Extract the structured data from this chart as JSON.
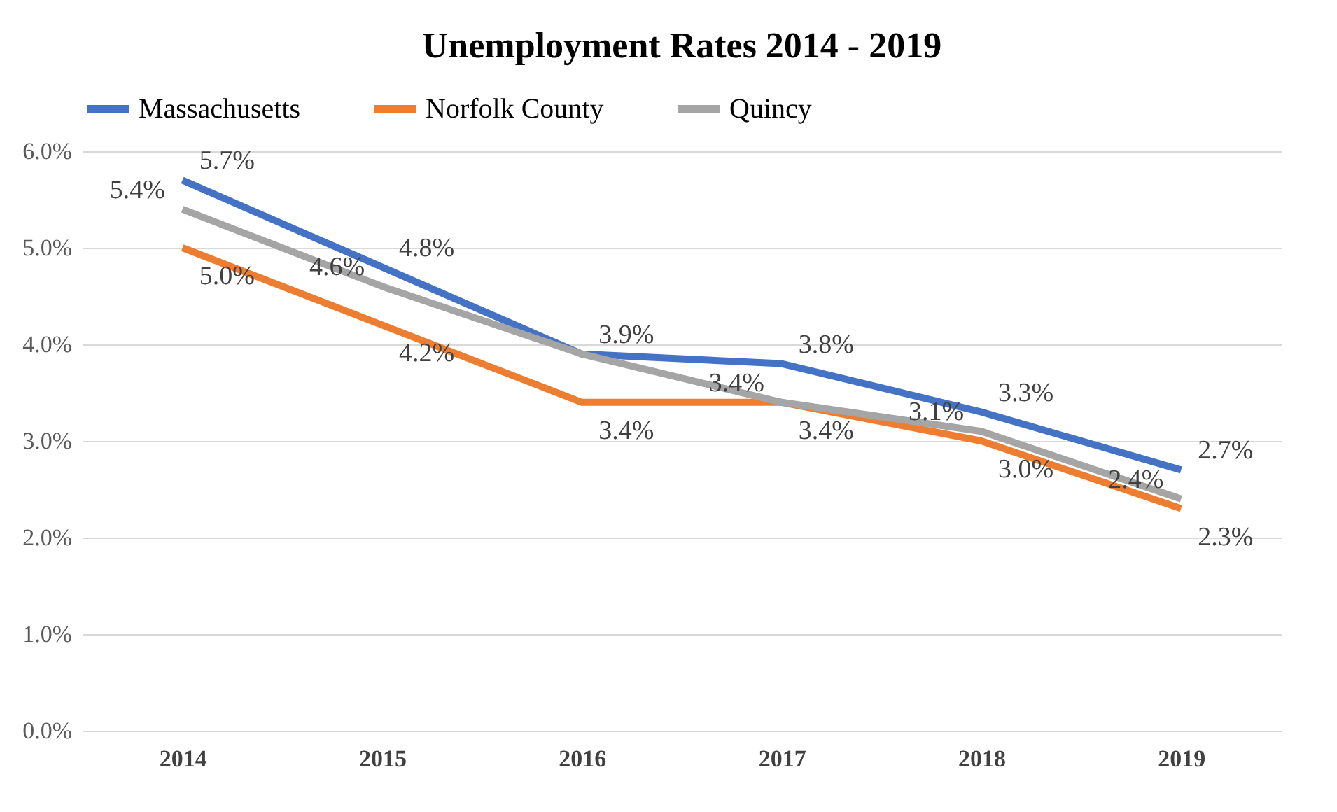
{
  "chart_data": {
    "type": "line",
    "title": "Unemployment Rates 2014 - 2019",
    "categories": [
      "2014",
      "2015",
      "2016",
      "2017",
      "2018",
      "2019"
    ],
    "series": [
      {
        "name": "Massachusetts",
        "color": "#4472c4",
        "values": [
          5.7,
          4.8,
          3.9,
          3.8,
          3.3,
          2.7
        ],
        "value_labels": [
          "5.7%",
          "4.8%",
          "3.9%",
          "3.8%",
          "3.3%",
          "2.7%"
        ]
      },
      {
        "name": "Norfolk County",
        "color": "#ed7d31",
        "values": [
          5.0,
          4.2,
          3.4,
          3.4,
          3.0,
          2.3
        ],
        "value_labels": [
          "5.0%",
          "4.2%",
          "3.4%",
          "3.4%",
          "3.0%",
          "2.3%"
        ]
      },
      {
        "name": "Quincy",
        "color": "#a5a5a5",
        "values": [
          5.4,
          4.6,
          3.9,
          3.4,
          3.1,
          2.4
        ],
        "value_labels": [
          "5.4%",
          "4.6%",
          null,
          "3.4%",
          "3.1%",
          "2.4%"
        ]
      }
    ],
    "ylim": [
      0,
      6
    ],
    "yticks": [
      {
        "value": 0,
        "label": "0.0%"
      },
      {
        "value": 1,
        "label": "1.0%"
      },
      {
        "value": 2,
        "label": "2.0%"
      },
      {
        "value": 3,
        "label": "3.0%"
      },
      {
        "value": 4,
        "label": "4.0%"
      },
      {
        "value": 5,
        "label": "5.0%"
      },
      {
        "value": 6,
        "label": "6.0%"
      }
    ],
    "grid": "y",
    "legend": "top",
    "marker": "none",
    "line_style": "solid"
  }
}
